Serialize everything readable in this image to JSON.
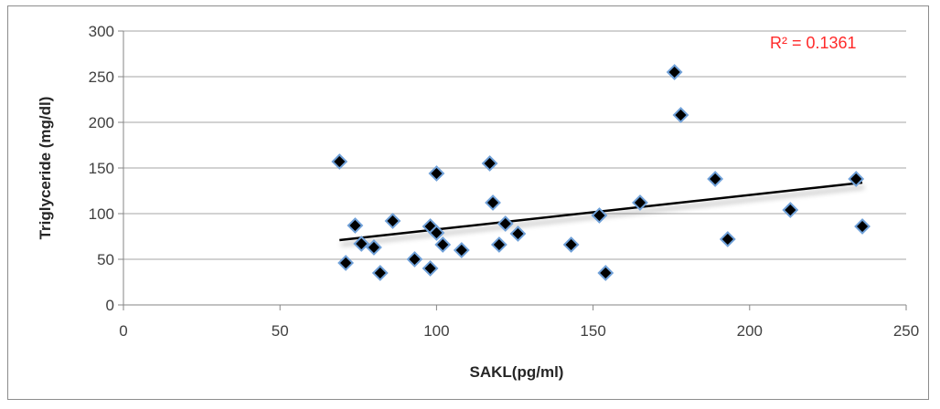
{
  "chart_data": {
    "type": "scatter",
    "title": "",
    "xlabel": "SAKL(pg/ml)",
    "ylabel": "Triglyceride  (mg/dl)",
    "xlim": [
      0,
      250
    ],
    "ylim": [
      0,
      300
    ],
    "x_ticks": [
      0,
      50,
      100,
      150,
      200,
      250
    ],
    "y_ticks": [
      0,
      50,
      100,
      150,
      200,
      250,
      300
    ],
    "grid": "horizontal",
    "legend": "none",
    "colors": {
      "marker_fill": "#000000",
      "marker_edge": "#6fa0d8",
      "trendline": "#000000",
      "gridline": "#a6a6a6",
      "annotation": "#ff2a2a"
    },
    "annotation": "R² = 0.1361",
    "points": [
      {
        "x": 69,
        "y": 157
      },
      {
        "x": 71,
        "y": 46
      },
      {
        "x": 74,
        "y": 87
      },
      {
        "x": 76,
        "y": 67
      },
      {
        "x": 80,
        "y": 63
      },
      {
        "x": 82,
        "y": 35
      },
      {
        "x": 86,
        "y": 92
      },
      {
        "x": 93,
        "y": 50
      },
      {
        "x": 98,
        "y": 86
      },
      {
        "x": 98,
        "y": 40
      },
      {
        "x": 100,
        "y": 79
      },
      {
        "x": 100,
        "y": 144
      },
      {
        "x": 102,
        "y": 66
      },
      {
        "x": 108,
        "y": 60
      },
      {
        "x": 117,
        "y": 155
      },
      {
        "x": 118,
        "y": 112
      },
      {
        "x": 120,
        "y": 66
      },
      {
        "x": 122,
        "y": 89
      },
      {
        "x": 126,
        "y": 78
      },
      {
        "x": 143,
        "y": 66
      },
      {
        "x": 152,
        "y": 98
      },
      {
        "x": 154,
        "y": 35
      },
      {
        "x": 165,
        "y": 112
      },
      {
        "x": 176,
        "y": 255
      },
      {
        "x": 178,
        "y": 208
      },
      {
        "x": 189,
        "y": 138
      },
      {
        "x": 193,
        "y": 72
      },
      {
        "x": 213,
        "y": 104
      },
      {
        "x": 234,
        "y": 138
      },
      {
        "x": 236,
        "y": 86
      }
    ],
    "trendline": {
      "type": "linear",
      "x": [
        69,
        236
      ],
      "y": [
        71,
        134
      ]
    }
  }
}
